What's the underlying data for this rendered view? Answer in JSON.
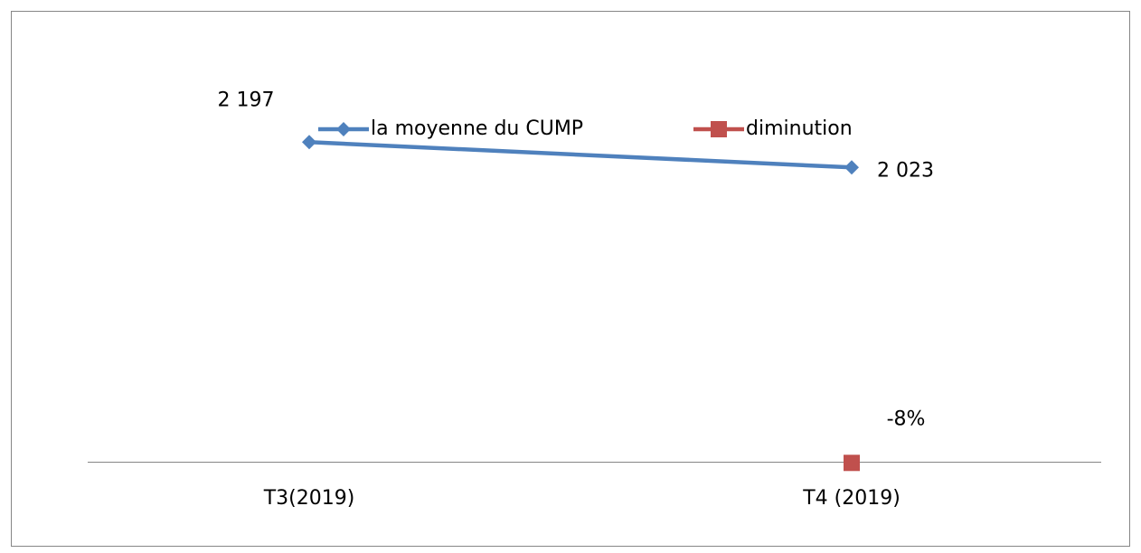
{
  "chart_data": {
    "type": "line",
    "categories": [
      "T3(2019)",
      "T4 (2019)"
    ],
    "series": [
      {
        "name": "la moyenne du CUMP",
        "color": "#4f81bd",
        "marker": "diamond",
        "values": [
          2197,
          2023
        ],
        "value_labels": [
          "2 197",
          "2 023"
        ]
      },
      {
        "name": "diminution",
        "color": "#c0504d",
        "marker": "square",
        "values": [
          null,
          -8
        ],
        "value_labels": [
          null,
          "-8%"
        ]
      }
    ],
    "ylim": [
      0,
      2500
    ]
  }
}
